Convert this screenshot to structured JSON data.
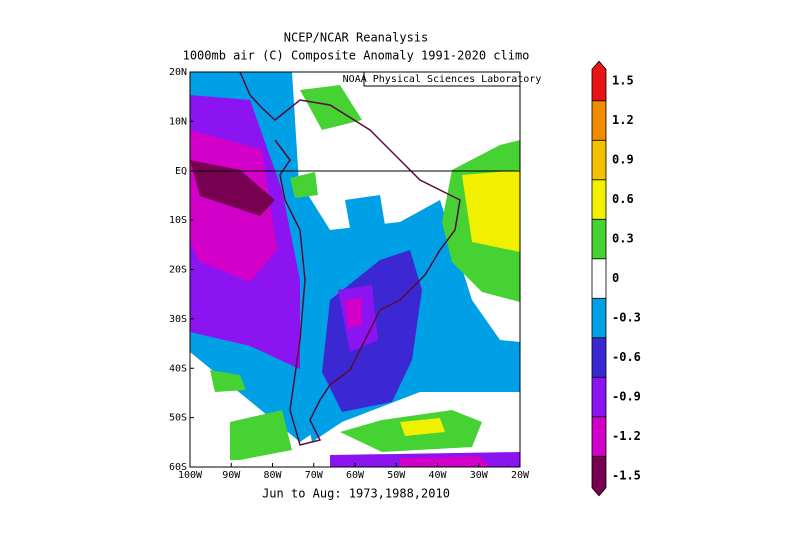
{
  "title": "NCEP/NCAR Reanalysis",
  "subtitle": "1000mb air (C) Composite Anomaly 1991-2020 climo",
  "credit": "NOAA Physical Sciences Laboratory",
  "caption": "Jun to Aug: 1973,1988,2010",
  "map": {
    "lon_labels": [
      "100W",
      "90W",
      "80W",
      "70W",
      "60W",
      "50W",
      "40W",
      "30W",
      "20W"
    ],
    "lat_labels": [
      "20N",
      "10N",
      "EQ",
      "10S",
      "20S",
      "30S",
      "40S",
      "50S",
      "60S"
    ]
  },
  "colorbar": {
    "levels": [
      -1.5,
      -1.2,
      -0.9,
      -0.6,
      -0.3,
      0,
      0.3,
      0.6,
      0.9,
      1.2,
      1.5
    ],
    "colors": [
      "#780050",
      "#d200c8",
      "#8c14f0",
      "#3c28d2",
      "#00a0e6",
      "#ffffff",
      "#46d232",
      "#f0f000",
      "#f5c000",
      "#f08c00",
      "#e81414"
    ]
  }
}
